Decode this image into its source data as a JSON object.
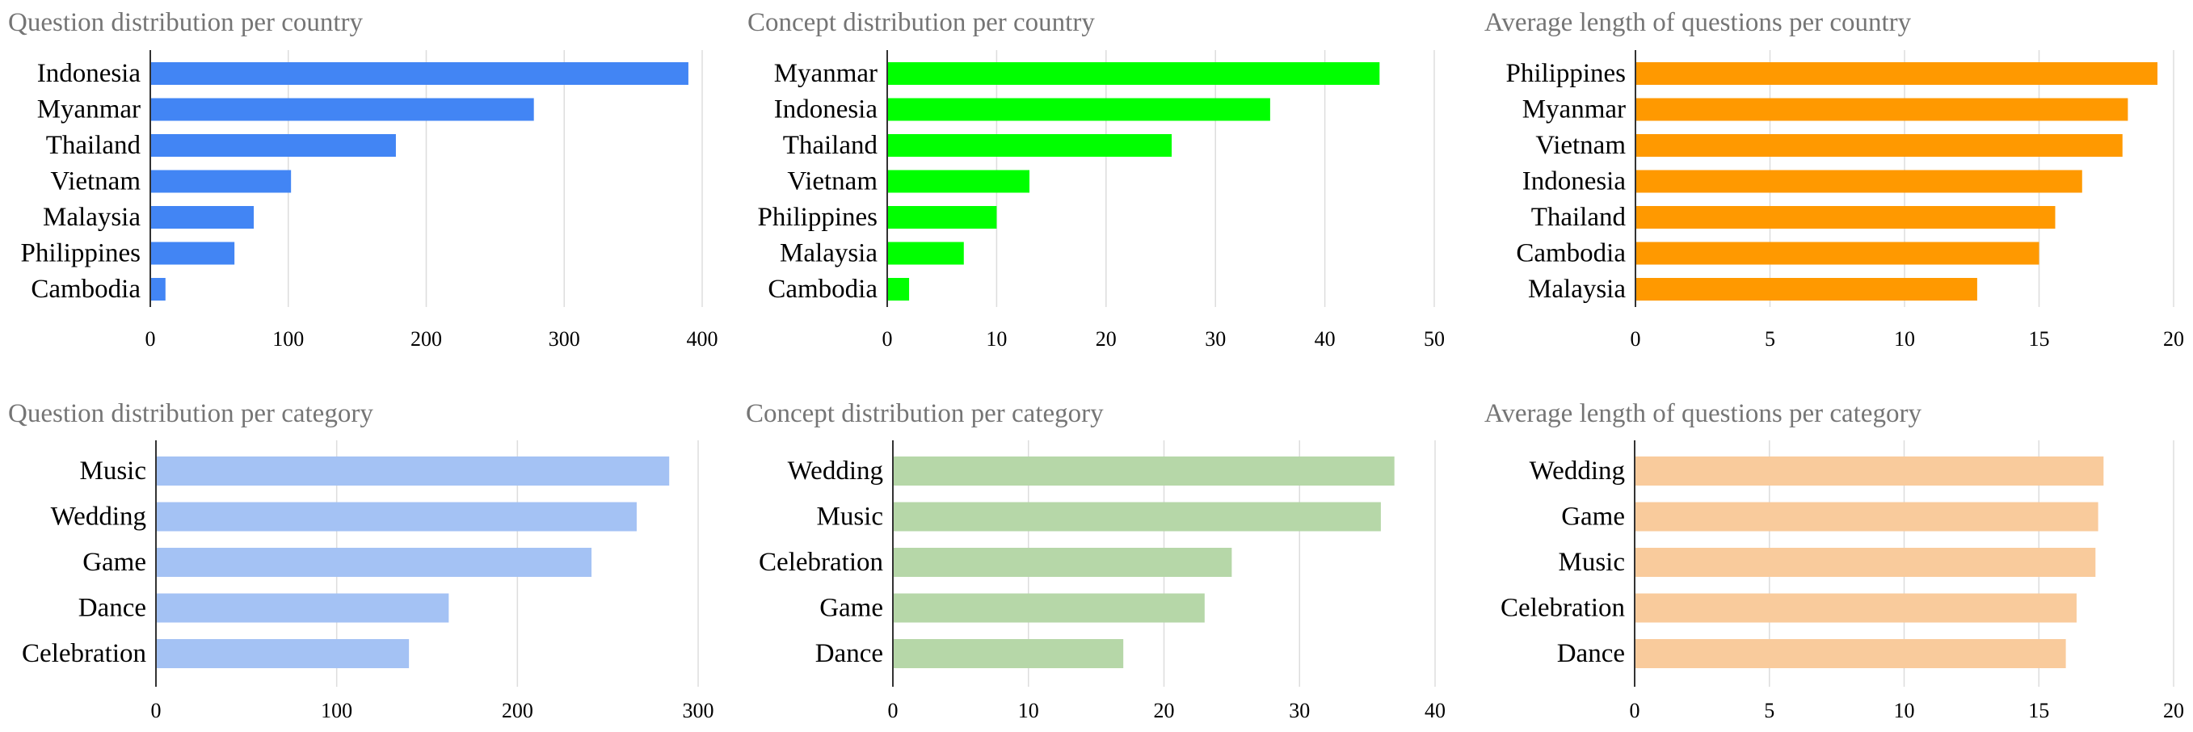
{
  "chart_data": [
    {
      "type": "bar",
      "orientation": "horizontal",
      "title": "Question distribution per country",
      "categories": [
        "Indonesia",
        "Myanmar",
        "Thailand",
        "Vietnam",
        "Malaysia",
        "Philippines",
        "Cambodia"
      ],
      "values": [
        390,
        278,
        178,
        102,
        75,
        61,
        11
      ],
      "xlim": [
        0,
        400
      ],
      "xticks": [
        "0",
        "100",
        "200",
        "300",
        "400"
      ],
      "color": "#4285f4",
      "grid": true
    },
    {
      "type": "bar",
      "orientation": "horizontal",
      "title": "Concept distribution per country",
      "categories": [
        "Myanmar",
        "Indonesia",
        "Thailand",
        "Vietnam",
        "Philippines",
        "Malaysia",
        "Cambodia"
      ],
      "values": [
        45,
        35,
        26,
        13,
        10,
        7,
        2
      ],
      "xlim": [
        0,
        50
      ],
      "xticks": [
        "0",
        "10",
        "20",
        "30",
        "40",
        "50"
      ],
      "color": "#00ff00",
      "grid": true
    },
    {
      "type": "bar",
      "orientation": "horizontal",
      "title": "Average length of questions per country",
      "categories": [
        "Philippines",
        "Myanmar",
        "Vietnam",
        "Indonesia",
        "Thailand",
        "Cambodia",
        "Malaysia"
      ],
      "values": [
        19.4,
        18.3,
        18.1,
        16.6,
        15.6,
        15.0,
        12.7
      ],
      "xlim": [
        0,
        20
      ],
      "xticks": [
        "0",
        "5",
        "10",
        "15",
        "20"
      ],
      "color": "#ff9900",
      "grid": true
    },
    {
      "type": "bar",
      "orientation": "horizontal",
      "title": "Question distribution per category",
      "categories": [
        "Music",
        "Wedding",
        "Game",
        "Dance",
        "Celebration"
      ],
      "values": [
        284,
        266,
        241,
        162,
        140
      ],
      "xlim": [
        0,
        300
      ],
      "xticks": [
        "0",
        "100",
        "200",
        "300"
      ],
      "color": "#a4c2f4",
      "grid": true
    },
    {
      "type": "bar",
      "orientation": "horizontal",
      "title": "Concept distribution per category",
      "categories": [
        "Wedding",
        "Music",
        "Celebration",
        "Game",
        "Dance"
      ],
      "values": [
        37,
        36,
        25,
        23,
        17
      ],
      "xlim": [
        0,
        40
      ],
      "xticks": [
        "0",
        "10",
        "20",
        "30",
        "40"
      ],
      "color": "#b6d7a8",
      "grid": true
    },
    {
      "type": "bar",
      "orientation": "horizontal",
      "title": "Average length of questions per category",
      "categories": [
        "Wedding",
        "Game",
        "Music",
        "Celebration",
        "Dance"
      ],
      "values": [
        17.4,
        17.2,
        17.1,
        16.4,
        16.0
      ],
      "xlim": [
        0,
        20
      ],
      "xticks": [
        "0",
        "5",
        "10",
        "15",
        "20"
      ],
      "color": "#f9cb9c",
      "grid": true
    }
  ]
}
